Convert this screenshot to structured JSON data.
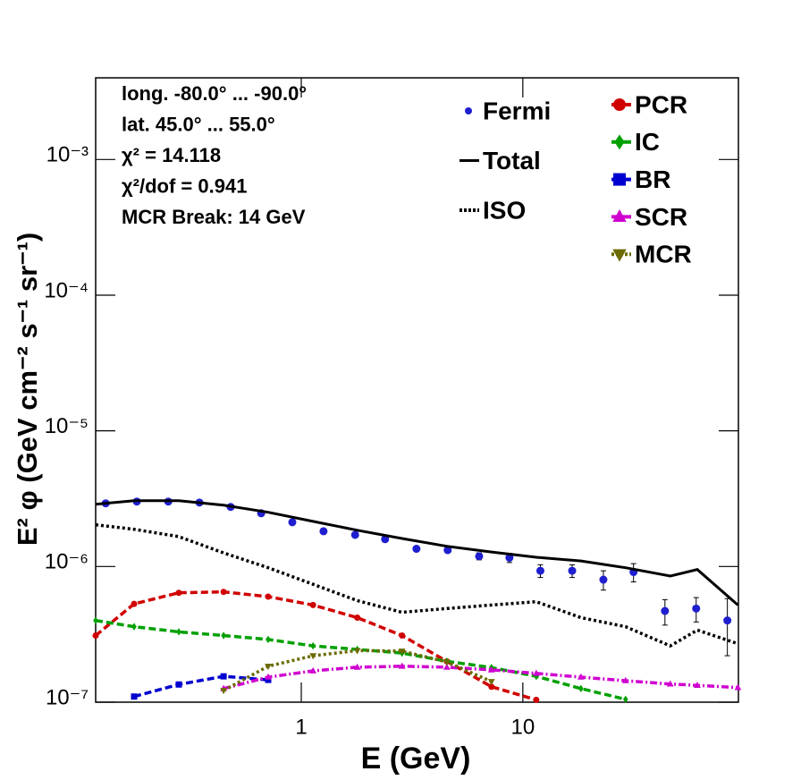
{
  "chart_data": {
    "type": "line",
    "xlabel": "E (GeV)",
    "ylabel": "E² φ (GeV cm⁻² s⁻¹ sr⁻¹)",
    "annotations": [
      "long. -80.0° ... -90.0°",
      "lat. 45.0° ... 55.0°",
      "χ² = 14.118",
      "χ²/dof = 0.941",
      "MCR Break: 14 GeV"
    ],
    "log_x": true,
    "log_y": true,
    "xlim": [
      0.118,
      94
    ],
    "xticks": [
      1,
      10
    ],
    "ylim": [
      1e-07,
      0.004
    ],
    "yticks": [
      {
        "value": 1e-07,
        "label": "10⁻⁷"
      },
      {
        "value": 1e-06,
        "label": "10⁻⁶"
      },
      {
        "value": 1e-05,
        "label": "10⁻⁵"
      },
      {
        "value": 0.0001,
        "label": "10⁻⁴"
      },
      {
        "value": 0.001,
        "label": "10⁻³"
      }
    ],
    "series": [
      {
        "name": "Fermi",
        "color": "#1f1fd0",
        "style": "points",
        "marker": "circle",
        "x": [
          0.131,
          0.181,
          0.251,
          0.347,
          0.48,
          0.659,
          0.911,
          1.26,
          1.75,
          2.39,
          3.31,
          4.58,
          6.35,
          8.7,
          12.0,
          16.7,
          23.1,
          31.6,
          43.8,
          60.6,
          83.8
        ],
        "values": [
          2.92e-06,
          3.01e-06,
          3.01e-06,
          2.96e-06,
          2.75e-06,
          2.47e-06,
          2.12e-06,
          1.82e-06,
          1.71e-06,
          1.59e-06,
          1.35e-06,
          1.32e-06,
          1.19e-06,
          1.16e-06,
          9.3e-07,
          9.3e-07,
          8e-07,
          9.1e-07,
          4.7e-07,
          4.9e-07,
          4e-07
        ],
        "errors": [
          5e-08,
          5e-08,
          5e-08,
          5e-08,
          5e-08,
          5e-08,
          5e-08,
          5e-08,
          5e-08,
          5e-08,
          5e-08,
          5e-08,
          7e-08,
          9e-08,
          1e-07,
          1e-07,
          1.3e-07,
          1.4e-07,
          1e-07,
          1e-07,
          1.8e-07
        ]
      },
      {
        "name": "Total",
        "color": "#000000",
        "style": "solid",
        "marker": null,
        "x": [
          0.118,
          0.176,
          0.28,
          0.446,
          0.709,
          1.13,
          1.79,
          2.85,
          4.54,
          7.22,
          11.5,
          18.3,
          29.1,
          46.3,
          61.3,
          93.5
        ],
        "values": [
          2.88e-06,
          3.06e-06,
          3.06e-06,
          2.83e-06,
          2.51e-06,
          2.15e-06,
          1.85e-06,
          1.61e-06,
          1.41e-06,
          1.28e-06,
          1.17e-06,
          1.1e-06,
          9.8e-07,
          8.5e-07,
          9.5e-07,
          5.2e-07
        ]
      },
      {
        "name": "ISO",
        "color": "#000000",
        "style": "dotted",
        "marker": null,
        "x": [
          0.118,
          0.176,
          0.28,
          0.446,
          0.709,
          1.13,
          1.79,
          2.85,
          4.54,
          7.22,
          11.5,
          18.3,
          29.1,
          46.3,
          61.3,
          93.5
        ],
        "values": [
          2.03e-06,
          1.88e-06,
          1.66e-06,
          1.26e-06,
          9.8e-07,
          7.4e-07,
          5.6e-07,
          4.6e-07,
          4.9e-07,
          5.2e-07,
          5.5e-07,
          4.2e-07,
          3.6e-07,
          2.6e-07,
          3.4e-07,
          2.7e-07
        ]
      },
      {
        "name": "PCR",
        "color": "#d00000",
        "style": "dashed",
        "marker": "circle",
        "x": [
          0.118,
          0.176,
          0.28,
          0.446,
          0.709,
          1.13,
          1.79,
          2.85,
          4.54,
          7.22,
          11.5
        ],
        "values": [
          3.1e-07,
          5.3e-07,
          6.4e-07,
          6.5e-07,
          6e-07,
          5.2e-07,
          4.2e-07,
          3.1e-07,
          2e-07,
          1.3e-07,
          1.04e-07
        ]
      },
      {
        "name": "IC",
        "color": "#00a000",
        "style": "dashed",
        "marker": "diamond",
        "x": [
          0.118,
          0.176,
          0.28,
          0.446,
          0.709,
          1.13,
          1.79,
          2.85,
          4.54,
          7.22,
          11.5,
          18.3,
          29.1
        ],
        "values": [
          4e-07,
          3.6e-07,
          3.3e-07,
          3.1e-07,
          2.9e-07,
          2.6e-07,
          2.45e-07,
          2.3e-07,
          2e-07,
          1.8e-07,
          1.55e-07,
          1.26e-07,
          1.05e-07
        ]
      },
      {
        "name": "BR",
        "color": "#0000d0",
        "style": "dashed",
        "marker": "square",
        "x": [
          0.176,
          0.28,
          0.446,
          0.709
        ],
        "values": [
          1.1e-07,
          1.35e-07,
          1.55e-07,
          1.46e-07
        ]
      },
      {
        "name": "SCR",
        "color": "#d000d0",
        "style": "dashdot",
        "marker": "triangle",
        "x": [
          0.446,
          0.709,
          1.13,
          1.79,
          2.85,
          4.54,
          7.22,
          11.5,
          18.3,
          29.1,
          46.3,
          61.3,
          93.5
        ],
        "values": [
          1.26e-07,
          1.53e-07,
          1.7e-07,
          1.81e-07,
          1.84e-07,
          1.81e-07,
          1.73e-07,
          1.63e-07,
          1.53e-07,
          1.44e-07,
          1.36e-07,
          1.33e-07,
          1.28e-07
        ]
      },
      {
        "name": "MCR",
        "color": "#6b6b00",
        "style": "dotted",
        "marker": "invtriangle",
        "x": [
          0.446,
          0.709,
          1.13,
          1.79,
          2.85,
          4.54,
          7.22
        ],
        "values": [
          1.22e-07,
          1.84e-07,
          2.2e-07,
          2.4e-07,
          2.38e-07,
          1.98e-07,
          1.42e-07
        ]
      }
    ]
  }
}
